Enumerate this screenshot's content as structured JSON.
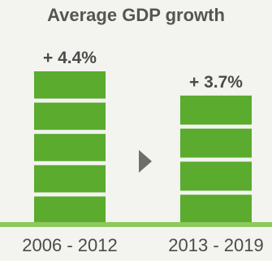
{
  "chart_data": {
    "type": "bar",
    "title": "Average GDP growth",
    "categories": [
      "2006 - 2012",
      "2013 - 2019"
    ],
    "values": [
      4.4,
      3.7
    ],
    "value_labels": [
      "+ 4.4%",
      "+ 3.7%"
    ],
    "bar_segments": [
      5,
      4
    ],
    "ylim": [
      0,
      4.4
    ],
    "xlabel": "",
    "ylabel": ""
  },
  "colors": {
    "bar": "#5aab2e",
    "baseline": "#8fc85d",
    "arrow": "#6d6d6d",
    "background": "#f3f3ef"
  },
  "icons": {
    "between_bars": "triangle-right-arrow-icon"
  }
}
